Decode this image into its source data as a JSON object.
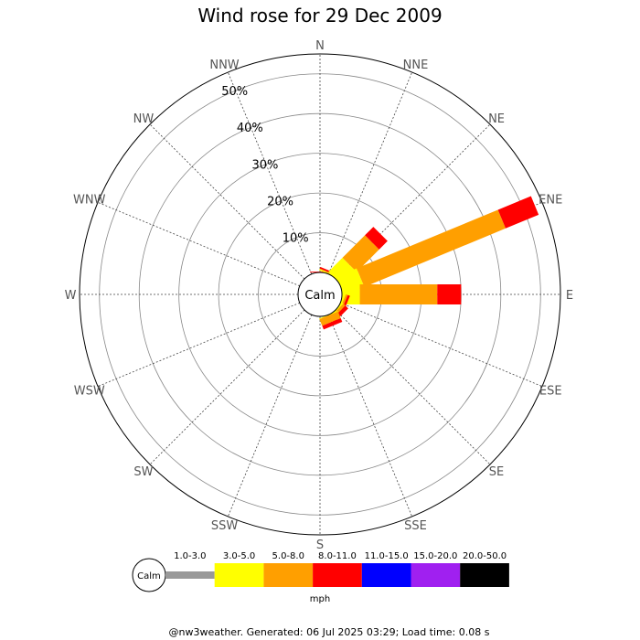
{
  "chart_data": {
    "type": "wind-rose",
    "title": "Wind rose for 29 Dec 2009",
    "directions": [
      "N",
      "NNE",
      "NE",
      "ENE",
      "E",
      "ESE",
      "SE",
      "SSE",
      "S",
      "SSW",
      "SW",
      "WSW",
      "W",
      "WNW",
      "NW",
      "NNW"
    ],
    "radial_ticks": [
      "10%",
      "20%",
      "30%",
      "40%",
      "50%"
    ],
    "radial_max_pct": 55,
    "calm_label": "Calm",
    "speed_bins": [
      {
        "label": "1.0-3.0",
        "color": "#999999"
      },
      {
        "label": "3.0-5.0",
        "color": "#ffff00"
      },
      {
        "label": "5.0-8.0",
        "color": "#ff9f00"
      },
      {
        "label": "8.0-11.0",
        "color": "#ff0000"
      },
      {
        "label": "11.0-15.0",
        "color": "#0000ff"
      },
      {
        "label": "15.0-20.0",
        "color": "#a020f0"
      },
      {
        "label": "20.0-50.0",
        "color": "#000000"
      }
    ],
    "units": "mph",
    "series": [
      {
        "direction": "N",
        "cumulative_pct": [
          0,
          0,
          0,
          0.2
        ]
      },
      {
        "direction": "NNE",
        "cumulative_pct": [
          0,
          0.3,
          0.5,
          0.9
        ]
      },
      {
        "direction": "NE",
        "cumulative_pct": [
          0,
          5,
          13,
          16
        ]
      },
      {
        "direction": "ENE",
        "cumulative_pct": [
          0,
          5.5,
          44,
          53
        ]
      },
      {
        "direction": "E",
        "cumulative_pct": [
          0,
          4.5,
          24,
          30
        ]
      },
      {
        "direction": "ESE",
        "cumulative_pct": [
          0,
          0.5,
          1,
          1.6
        ]
      },
      {
        "direction": "SE",
        "cumulative_pct": [
          0,
          0.3,
          1,
          2
        ]
      },
      {
        "direction": "SSE",
        "cumulative_pct": [
          0,
          0.2,
          2,
          3
        ]
      }
    ]
  },
  "footer": "@nw3weather. Generated: 06 Jul 2025 03:29; Load time: 0.08 s"
}
